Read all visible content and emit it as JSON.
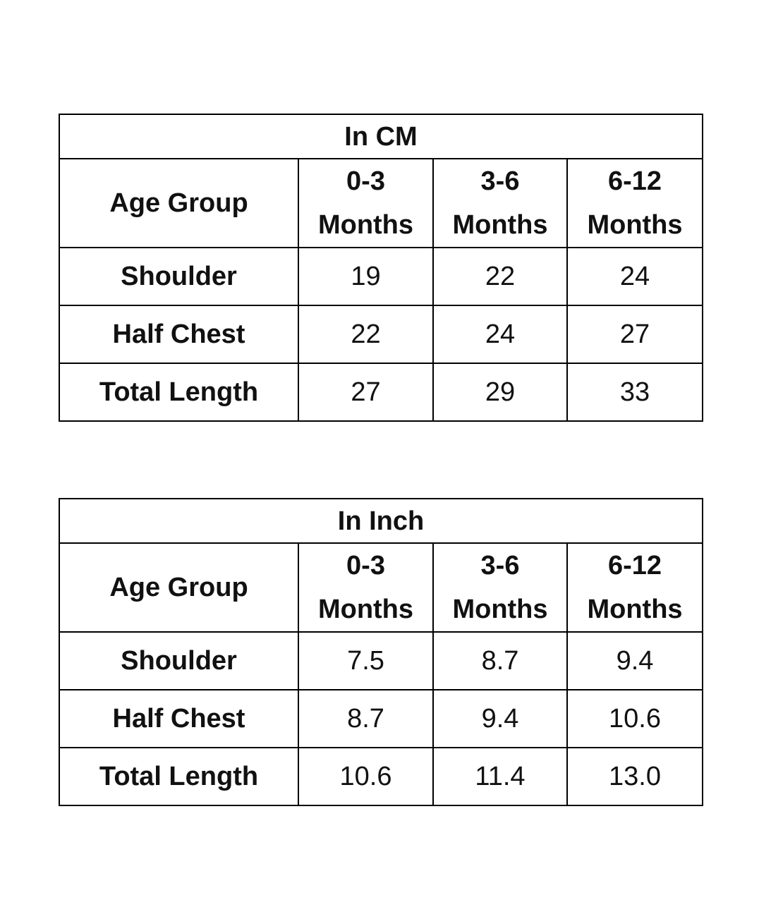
{
  "tables": [
    {
      "title": "In CM",
      "header": {
        "label": "Age Group",
        "columns": [
          "0-3 Months",
          "3-6 Months",
          "6-12 Months"
        ]
      },
      "rows": [
        {
          "label": "Shoulder",
          "values": [
            "19",
            "22",
            "24"
          ]
        },
        {
          "label": "Half Chest",
          "values": [
            "22",
            "24",
            "27"
          ]
        },
        {
          "label": "Total Length",
          "values": [
            "27",
            "29",
            "33"
          ]
        }
      ]
    },
    {
      "title": "In Inch",
      "header": {
        "label": "Age Group",
        "columns": [
          "0-3 Months",
          "3-6 Months",
          "6-12 Months"
        ]
      },
      "rows": [
        {
          "label": "Shoulder",
          "values": [
            "7.5",
            "8.7",
            "9.4"
          ]
        },
        {
          "label": "Half Chest",
          "values": [
            "8.7",
            "9.4",
            "10.6"
          ]
        },
        {
          "label": "Total Length",
          "values": [
            "10.6",
            "11.4",
            "13.0"
          ]
        }
      ]
    }
  ]
}
